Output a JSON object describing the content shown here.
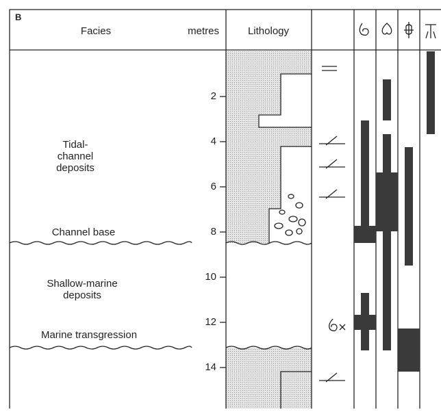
{
  "panel_label": "B",
  "header": {
    "facies": "Facies",
    "metres": "metres",
    "lithology": "Lithology"
  },
  "depth_ticks": [
    2,
    4,
    6,
    8,
    10,
    12,
    14
  ],
  "facies": [
    {
      "lines": [
        "Tidal-",
        "channel",
        "deposits"
      ]
    },
    {
      "lines": [
        "Shallow-marine",
        "deposits"
      ]
    }
  ],
  "boundaries": [
    "Channel base",
    "Marine transgression"
  ]
}
